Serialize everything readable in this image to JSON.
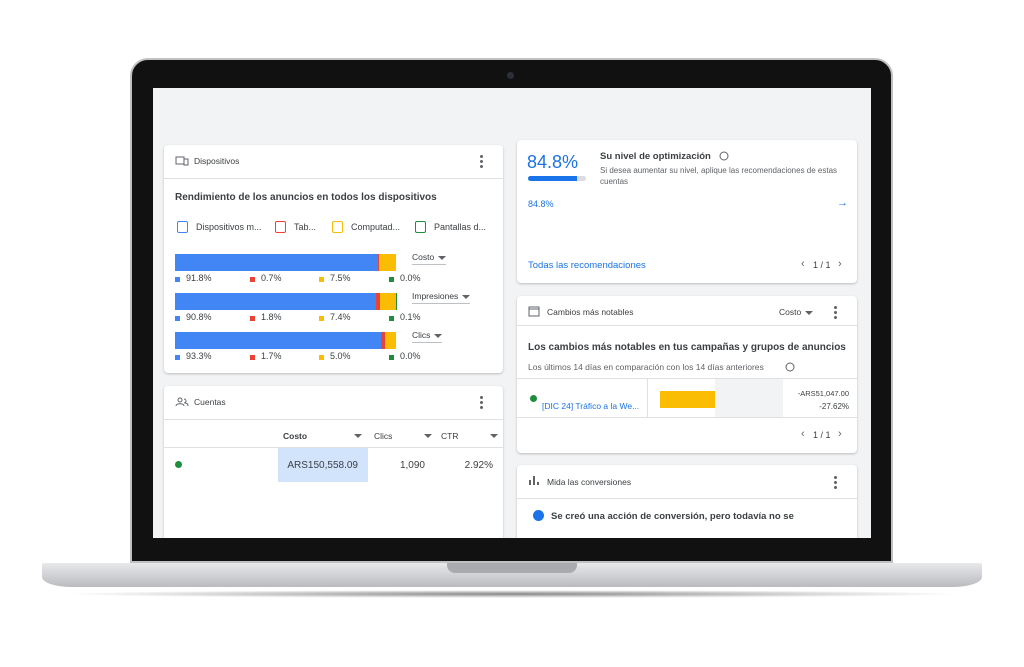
{
  "devices": {
    "title": "Dispositivos",
    "heading": "Rendimiento de los anuncios en todos los dispositivos",
    "legend": [
      "Dispositivos m...",
      "Tab...",
      "Computad...",
      "Pantallas d..."
    ],
    "colors": [
      "#4285f4",
      "#ea4335",
      "#fbbc04",
      "#1e8e3e"
    ],
    "metrics": [
      {
        "label": "Costo",
        "values": [
          91.8,
          0.7,
          7.5,
          0.0
        ],
        "value_labels": [
          "91.8%",
          "0.7%",
          "7.5%",
          "0.0%"
        ]
      },
      {
        "label": "Impresiones",
        "values": [
          90.8,
          1.8,
          7.4,
          0.1
        ],
        "value_labels": [
          "90.8%",
          "1.8%",
          "7.4%",
          "0.1%"
        ]
      },
      {
        "label": "Clics",
        "values": [
          93.3,
          1.7,
          5.0,
          0.0
        ],
        "value_labels": [
          "93.3%",
          "1.7%",
          "5.0%",
          "0.0%"
        ]
      }
    ]
  },
  "accounts": {
    "title": "Cuentas",
    "columns": [
      "Costo",
      "Clics",
      "CTR"
    ],
    "rows": [
      [
        "ARS150,558.09",
        "1,090",
        "2.92%"
      ]
    ]
  },
  "optimization": {
    "score": {
      "value": 84.8,
      "label": "84.8%"
    },
    "title": "Su nivel de optimización",
    "description": "Si desea aumentar su nivel, aplique las recomendaciones de estas cuentas",
    "link": "Todas las recomendaciones",
    "pager": "1 / 1"
  },
  "changes": {
    "title": "Cambios más notables",
    "dropdown": "Costo",
    "heading": "Los cambios más notables en tus campañas y grupos de anuncios",
    "subheading": "Los últimos 14 días en comparación con los 14 días anteriores",
    "rows": [
      {
        "campaign": "[DIC 24] Tráfico a la We...",
        "change": "-ARS51,047.00",
        "percent": "-27.62%"
      }
    ],
    "pager": "1 / 1"
  },
  "conversions": {
    "title": "Mida las conversiones",
    "text": "Se creó una acción de conversión, pero todavía no se"
  }
}
